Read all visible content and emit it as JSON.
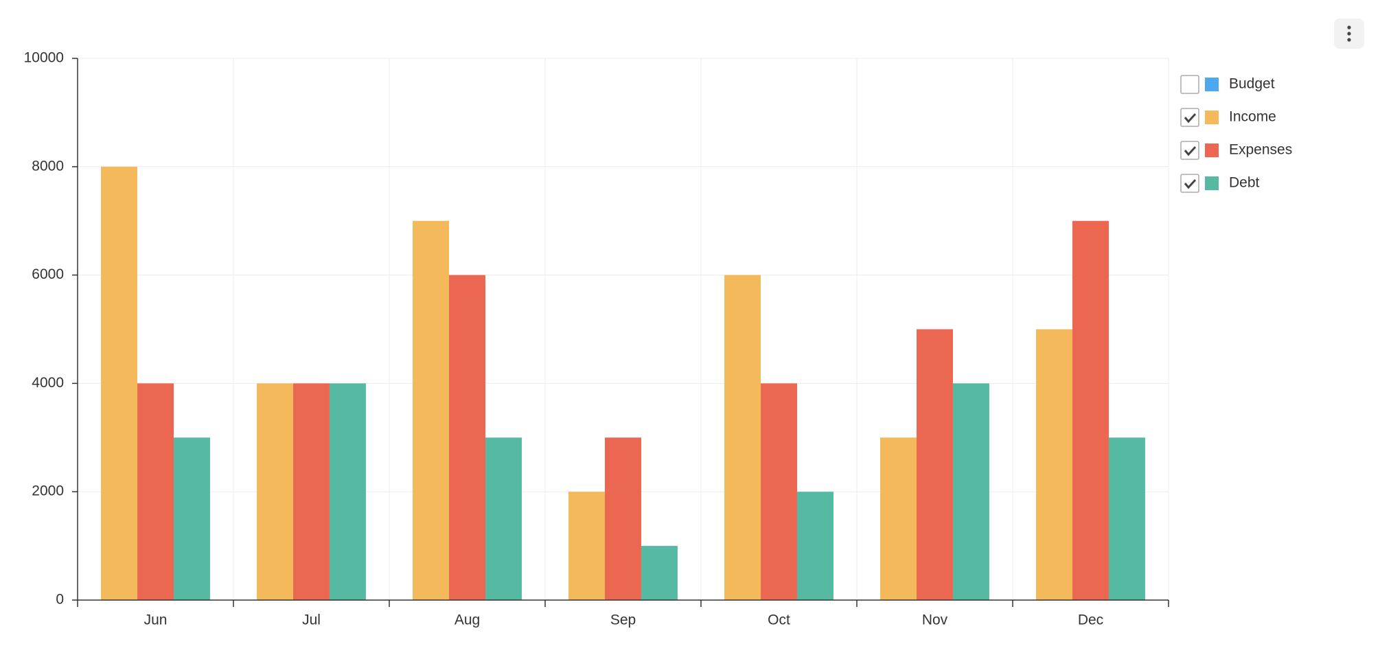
{
  "chart_data": {
    "type": "bar",
    "categories": [
      "Jun",
      "Jul",
      "Aug",
      "Sep",
      "Oct",
      "Nov",
      "Dec"
    ],
    "series": [
      {
        "name": "Budget",
        "color": "#4ea8f0",
        "visible": false,
        "values": [
          null,
          null,
          null,
          null,
          null,
          null,
          null
        ]
      },
      {
        "name": "Income",
        "color": "#f3b95a",
        "visible": true,
        "values": [
          8000,
          4000,
          7000,
          2000,
          6000,
          3000,
          5000
        ]
      },
      {
        "name": "Expenses",
        "color": "#ec6752",
        "visible": true,
        "values": [
          4000,
          4000,
          6000,
          3000,
          4000,
          5000,
          7000
        ]
      },
      {
        "name": "Debt",
        "color": "#56baa2",
        "visible": true,
        "values": [
          3000,
          4000,
          3000,
          1000,
          2000,
          4000,
          3000
        ]
      }
    ],
    "ylim": [
      0,
      10000
    ],
    "yticks": [
      0,
      2000,
      4000,
      6000,
      8000,
      10000
    ],
    "grid": true,
    "legend": "right"
  }
}
